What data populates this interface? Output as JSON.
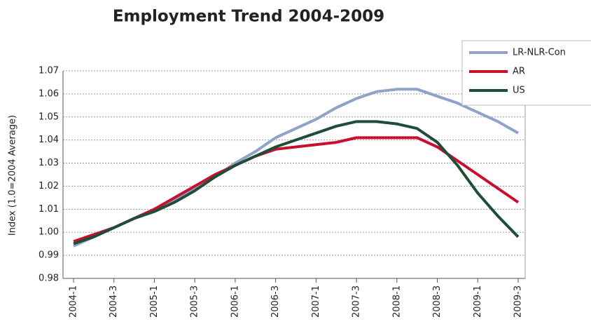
{
  "chart_data": {
    "type": "line",
    "title": "Employment Trend 2004-2009",
    "y_label": "Index (1.0=2004 Average)",
    "categories": [
      "2004-1",
      null,
      "2004-3",
      null,
      "2005-1",
      null,
      "2005-3",
      null,
      "2006-1",
      null,
      "2006-3",
      null,
      "2007-1",
      null,
      "2007-3",
      null,
      "2008-1",
      null,
      "2008-3",
      null,
      "2009-1",
      null,
      "2009-3"
    ],
    "series": [
      {
        "name": "LR-NLR-Con",
        "color": "#8fa3c8",
        "values": [
          0.994,
          0.998,
          1.002,
          1.006,
          1.01,
          1.014,
          1.019,
          1.024,
          1.03,
          1.035,
          1.041,
          1.045,
          1.049,
          1.054,
          1.058,
          1.061,
          1.062,
          1.062,
          1.059,
          1.056,
          1.052,
          1.048,
          1.043
        ]
      },
      {
        "name": "AR",
        "color": "#c8102e",
        "values": [
          0.996,
          0.999,
          1.002,
          1.006,
          1.01,
          1.015,
          1.02,
          1.025,
          1.029,
          1.033,
          1.036,
          1.037,
          1.038,
          1.039,
          1.041,
          1.041,
          1.041,
          1.041,
          1.037,
          1.031,
          1.025,
          1.019,
          1.013
        ]
      },
      {
        "name": "US",
        "color": "#1f4d3a",
        "values": [
          0.995,
          0.998,
          1.002,
          1.006,
          1.009,
          1.013,
          1.018,
          1.024,
          1.029,
          1.033,
          1.037,
          1.04,
          1.043,
          1.046,
          1.048,
          1.048,
          1.047,
          1.045,
          1.039,
          1.029,
          1.017,
          1.007,
          0.998
        ]
      }
    ],
    "ylim": [
      0.98,
      1.07
    ],
    "yticks": [
      0.98,
      0.99,
      {
        "value": 1,
        "label": "1.00"
      },
      1.01,
      1.02,
      1.03,
      1.04,
      1.05,
      1.06,
      1.07
    ],
    "grid": true,
    "legend": "top-right"
  }
}
